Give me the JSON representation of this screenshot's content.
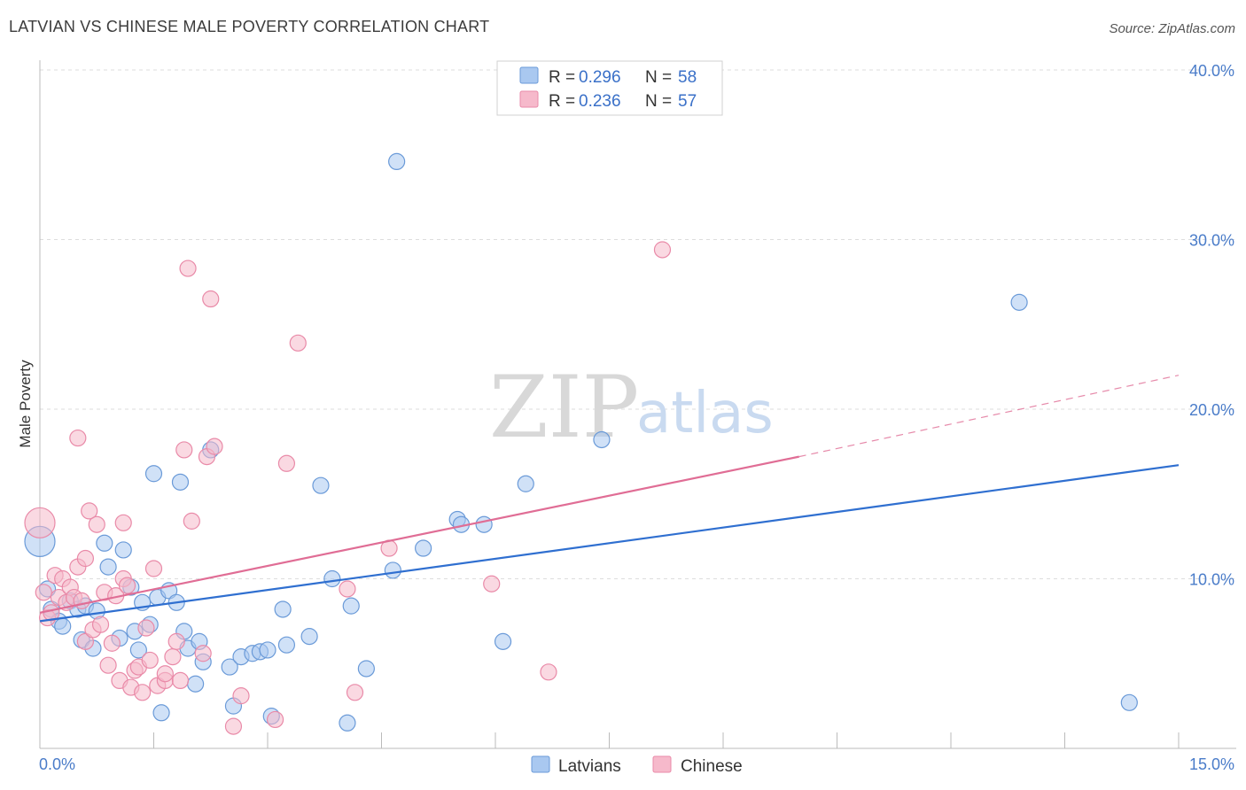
{
  "header": {
    "title": "LATVIAN VS CHINESE MALE POVERTY CORRELATION CHART",
    "source": "Source: ZipAtlas.com"
  },
  "watermark": {
    "zip": "ZIP",
    "atlas": "atlas"
  },
  "colors": {
    "latvians_fill": "#a9c8f0",
    "latvians_stroke": "#6a9ad8",
    "latvians_line": "#2f6fd0",
    "chinese_fill": "#f6b9cb",
    "chinese_stroke": "#e98aa8",
    "chinese_line": "#e06d95",
    "grid": "#dddddd",
    "axis_text": "#4a7cc9"
  },
  "legend_top": {
    "rows": [
      {
        "r_label": "R = ",
        "r_value": "0.296",
        "n_label": "N = ",
        "n_value": "58"
      },
      {
        "r_label": "R = ",
        "r_value": "0.236",
        "n_label": "N = ",
        "n_value": "57"
      }
    ]
  },
  "legend_bottom": {
    "items": [
      "Latvians",
      "Chinese"
    ]
  },
  "chart_data": {
    "type": "scatter",
    "title": "LATVIAN VS CHINESE MALE POVERTY CORRELATION CHART",
    "xlabel": "",
    "ylabel": "Male Poverty",
    "xlim": [
      0,
      15
    ],
    "ylim": [
      0,
      40
    ],
    "x_tick_labels": [
      "0.0%",
      "15.0%"
    ],
    "y_ticks": [
      10,
      20,
      30,
      40
    ],
    "y_tick_labels": [
      "10.0%",
      "20.0%",
      "30.0%",
      "40.0%"
    ],
    "grid": true,
    "legend_position": "top-center",
    "series": [
      {
        "name": "Latvians",
        "r": 0.296,
        "n": 58,
        "trend": {
          "x": [
            0,
            15
          ],
          "y": [
            7.5,
            16.7
          ]
        },
        "points": [
          {
            "x": 0.0,
            "y": 12.2,
            "s": 2
          },
          {
            "x": 0.1,
            "y": 9.4,
            "s": 1
          },
          {
            "x": 0.15,
            "y": 8.2,
            "s": 1
          },
          {
            "x": 0.25,
            "y": 7.5,
            "s": 1
          },
          {
            "x": 0.3,
            "y": 7.2,
            "s": 1
          },
          {
            "x": 0.4,
            "y": 8.7,
            "s": 1
          },
          {
            "x": 0.5,
            "y": 8.2,
            "s": 1
          },
          {
            "x": 0.55,
            "y": 6.4,
            "s": 1
          },
          {
            "x": 0.6,
            "y": 8.4,
            "s": 1
          },
          {
            "x": 0.7,
            "y": 5.9,
            "s": 1
          },
          {
            "x": 0.75,
            "y": 8.1,
            "s": 1
          },
          {
            "x": 0.85,
            "y": 12.1,
            "s": 1
          },
          {
            "x": 0.9,
            "y": 10.7,
            "s": 1
          },
          {
            "x": 1.05,
            "y": 6.5,
            "s": 1
          },
          {
            "x": 1.1,
            "y": 11.7,
            "s": 1
          },
          {
            "x": 1.2,
            "y": 9.5,
            "s": 1
          },
          {
            "x": 1.25,
            "y": 6.9,
            "s": 1
          },
          {
            "x": 1.3,
            "y": 5.8,
            "s": 1
          },
          {
            "x": 1.35,
            "y": 8.6,
            "s": 1
          },
          {
            "x": 1.45,
            "y": 7.3,
            "s": 1
          },
          {
            "x": 1.5,
            "y": 16.2,
            "s": 1
          },
          {
            "x": 1.55,
            "y": 8.9,
            "s": 1
          },
          {
            "x": 1.6,
            "y": 2.1,
            "s": 1
          },
          {
            "x": 1.7,
            "y": 9.3,
            "s": 1
          },
          {
            "x": 1.8,
            "y": 8.6,
            "s": 1
          },
          {
            "x": 1.85,
            "y": 15.7,
            "s": 1
          },
          {
            "x": 1.9,
            "y": 6.9,
            "s": 1
          },
          {
            "x": 1.95,
            "y": 5.9,
            "s": 1
          },
          {
            "x": 2.05,
            "y": 3.8,
            "s": 1
          },
          {
            "x": 2.1,
            "y": 6.3,
            "s": 1
          },
          {
            "x": 2.15,
            "y": 5.1,
            "s": 1
          },
          {
            "x": 2.25,
            "y": 17.6,
            "s": 1
          },
          {
            "x": 2.5,
            "y": 4.8,
            "s": 1
          },
          {
            "x": 2.55,
            "y": 2.5,
            "s": 1
          },
          {
            "x": 2.65,
            "y": 5.4,
            "s": 1
          },
          {
            "x": 2.8,
            "y": 5.6,
            "s": 1
          },
          {
            "x": 2.9,
            "y": 5.7,
            "s": 1
          },
          {
            "x": 3.0,
            "y": 5.8,
            "s": 1
          },
          {
            "x": 3.05,
            "y": 1.9,
            "s": 1
          },
          {
            "x": 3.2,
            "y": 8.2,
            "s": 1
          },
          {
            "x": 3.25,
            "y": 6.1,
            "s": 1
          },
          {
            "x": 3.55,
            "y": 6.6,
            "s": 1
          },
          {
            "x": 3.7,
            "y": 15.5,
            "s": 1
          },
          {
            "x": 3.85,
            "y": 10.0,
            "s": 1
          },
          {
            "x": 4.05,
            "y": 1.5,
            "s": 1
          },
          {
            "x": 4.1,
            "y": 8.4,
            "s": 1
          },
          {
            "x": 4.3,
            "y": 4.7,
            "s": 1
          },
          {
            "x": 4.65,
            "y": 10.5,
            "s": 1
          },
          {
            "x": 4.7,
            "y": 34.6,
            "s": 1
          },
          {
            "x": 5.05,
            "y": 11.8,
            "s": 1
          },
          {
            "x": 5.5,
            "y": 13.5,
            "s": 1
          },
          {
            "x": 5.55,
            "y": 13.2,
            "s": 1
          },
          {
            "x": 5.85,
            "y": 13.2,
            "s": 1
          },
          {
            "x": 6.1,
            "y": 6.3,
            "s": 1
          },
          {
            "x": 6.4,
            "y": 15.6,
            "s": 1
          },
          {
            "x": 7.4,
            "y": 18.2,
            "s": 1
          },
          {
            "x": 12.9,
            "y": 26.3,
            "s": 1
          },
          {
            "x": 14.35,
            "y": 2.7,
            "s": 1
          }
        ]
      },
      {
        "name": "Chinese",
        "r": 0.236,
        "n": 57,
        "trend": {
          "x": [
            0,
            10.0
          ],
          "y": [
            8.0,
            17.2
          ]
        },
        "trend_dashed": {
          "x": [
            10.0,
            15
          ],
          "y": [
            17.2,
            22.0
          ]
        },
        "points": [
          {
            "x": 0.0,
            "y": 13.3,
            "s": 2
          },
          {
            "x": 0.05,
            "y": 9.2,
            "s": 1
          },
          {
            "x": 0.1,
            "y": 7.7,
            "s": 1
          },
          {
            "x": 0.15,
            "y": 8.0,
            "s": 1
          },
          {
            "x": 0.2,
            "y": 10.2,
            "s": 1
          },
          {
            "x": 0.25,
            "y": 8.9,
            "s": 1
          },
          {
            "x": 0.3,
            "y": 10.0,
            "s": 1
          },
          {
            "x": 0.35,
            "y": 8.6,
            "s": 1
          },
          {
            "x": 0.4,
            "y": 9.5,
            "s": 1
          },
          {
            "x": 0.45,
            "y": 8.9,
            "s": 1
          },
          {
            "x": 0.5,
            "y": 10.7,
            "s": 1
          },
          {
            "x": 0.5,
            "y": 18.3,
            "s": 1
          },
          {
            "x": 0.55,
            "y": 8.7,
            "s": 1
          },
          {
            "x": 0.6,
            "y": 11.2,
            "s": 1
          },
          {
            "x": 0.6,
            "y": 6.3,
            "s": 1
          },
          {
            "x": 0.65,
            "y": 14.0,
            "s": 1
          },
          {
            "x": 0.7,
            "y": 7.0,
            "s": 1
          },
          {
            "x": 0.75,
            "y": 13.2,
            "s": 1
          },
          {
            "x": 0.8,
            "y": 7.3,
            "s": 1
          },
          {
            "x": 0.85,
            "y": 9.2,
            "s": 1
          },
          {
            "x": 0.9,
            "y": 4.9,
            "s": 1
          },
          {
            "x": 0.95,
            "y": 6.2,
            "s": 1
          },
          {
            "x": 1.0,
            "y": 9.0,
            "s": 1
          },
          {
            "x": 1.05,
            "y": 4.0,
            "s": 1
          },
          {
            "x": 1.1,
            "y": 10.0,
            "s": 1
          },
          {
            "x": 1.1,
            "y": 13.3,
            "s": 1
          },
          {
            "x": 1.15,
            "y": 9.6,
            "s": 1
          },
          {
            "x": 1.2,
            "y": 3.6,
            "s": 1
          },
          {
            "x": 1.25,
            "y": 4.6,
            "s": 1
          },
          {
            "x": 1.3,
            "y": 4.8,
            "s": 1
          },
          {
            "x": 1.35,
            "y": 3.3,
            "s": 1
          },
          {
            "x": 1.4,
            "y": 7.1,
            "s": 1
          },
          {
            "x": 1.45,
            "y": 5.2,
            "s": 1
          },
          {
            "x": 1.5,
            "y": 10.6,
            "s": 1
          },
          {
            "x": 1.55,
            "y": 3.7,
            "s": 1
          },
          {
            "x": 1.65,
            "y": 4.0,
            "s": 1
          },
          {
            "x": 1.65,
            "y": 4.4,
            "s": 1
          },
          {
            "x": 1.75,
            "y": 5.4,
            "s": 1
          },
          {
            "x": 1.8,
            "y": 6.3,
            "s": 1
          },
          {
            "x": 1.85,
            "y": 4.0,
            "s": 1
          },
          {
            "x": 1.9,
            "y": 17.6,
            "s": 1
          },
          {
            "x": 1.95,
            "y": 28.3,
            "s": 1
          },
          {
            "x": 2.0,
            "y": 13.4,
            "s": 1
          },
          {
            "x": 2.15,
            "y": 5.6,
            "s": 1
          },
          {
            "x": 2.2,
            "y": 17.2,
            "s": 1
          },
          {
            "x": 2.25,
            "y": 26.5,
            "s": 1
          },
          {
            "x": 2.3,
            "y": 17.8,
            "s": 1
          },
          {
            "x": 2.55,
            "y": 1.3,
            "s": 1
          },
          {
            "x": 2.65,
            "y": 3.1,
            "s": 1
          },
          {
            "x": 3.1,
            "y": 1.7,
            "s": 1
          },
          {
            "x": 3.25,
            "y": 16.8,
            "s": 1
          },
          {
            "x": 3.4,
            "y": 23.9,
            "s": 1
          },
          {
            "x": 4.05,
            "y": 9.4,
            "s": 1
          },
          {
            "x": 4.15,
            "y": 3.3,
            "s": 1
          },
          {
            "x": 4.6,
            "y": 11.8,
            "s": 1
          },
          {
            "x": 5.95,
            "y": 9.7,
            "s": 1
          },
          {
            "x": 6.7,
            "y": 4.5,
            "s": 1
          },
          {
            "x": 8.2,
            "y": 29.4,
            "s": 1
          }
        ]
      }
    ]
  }
}
